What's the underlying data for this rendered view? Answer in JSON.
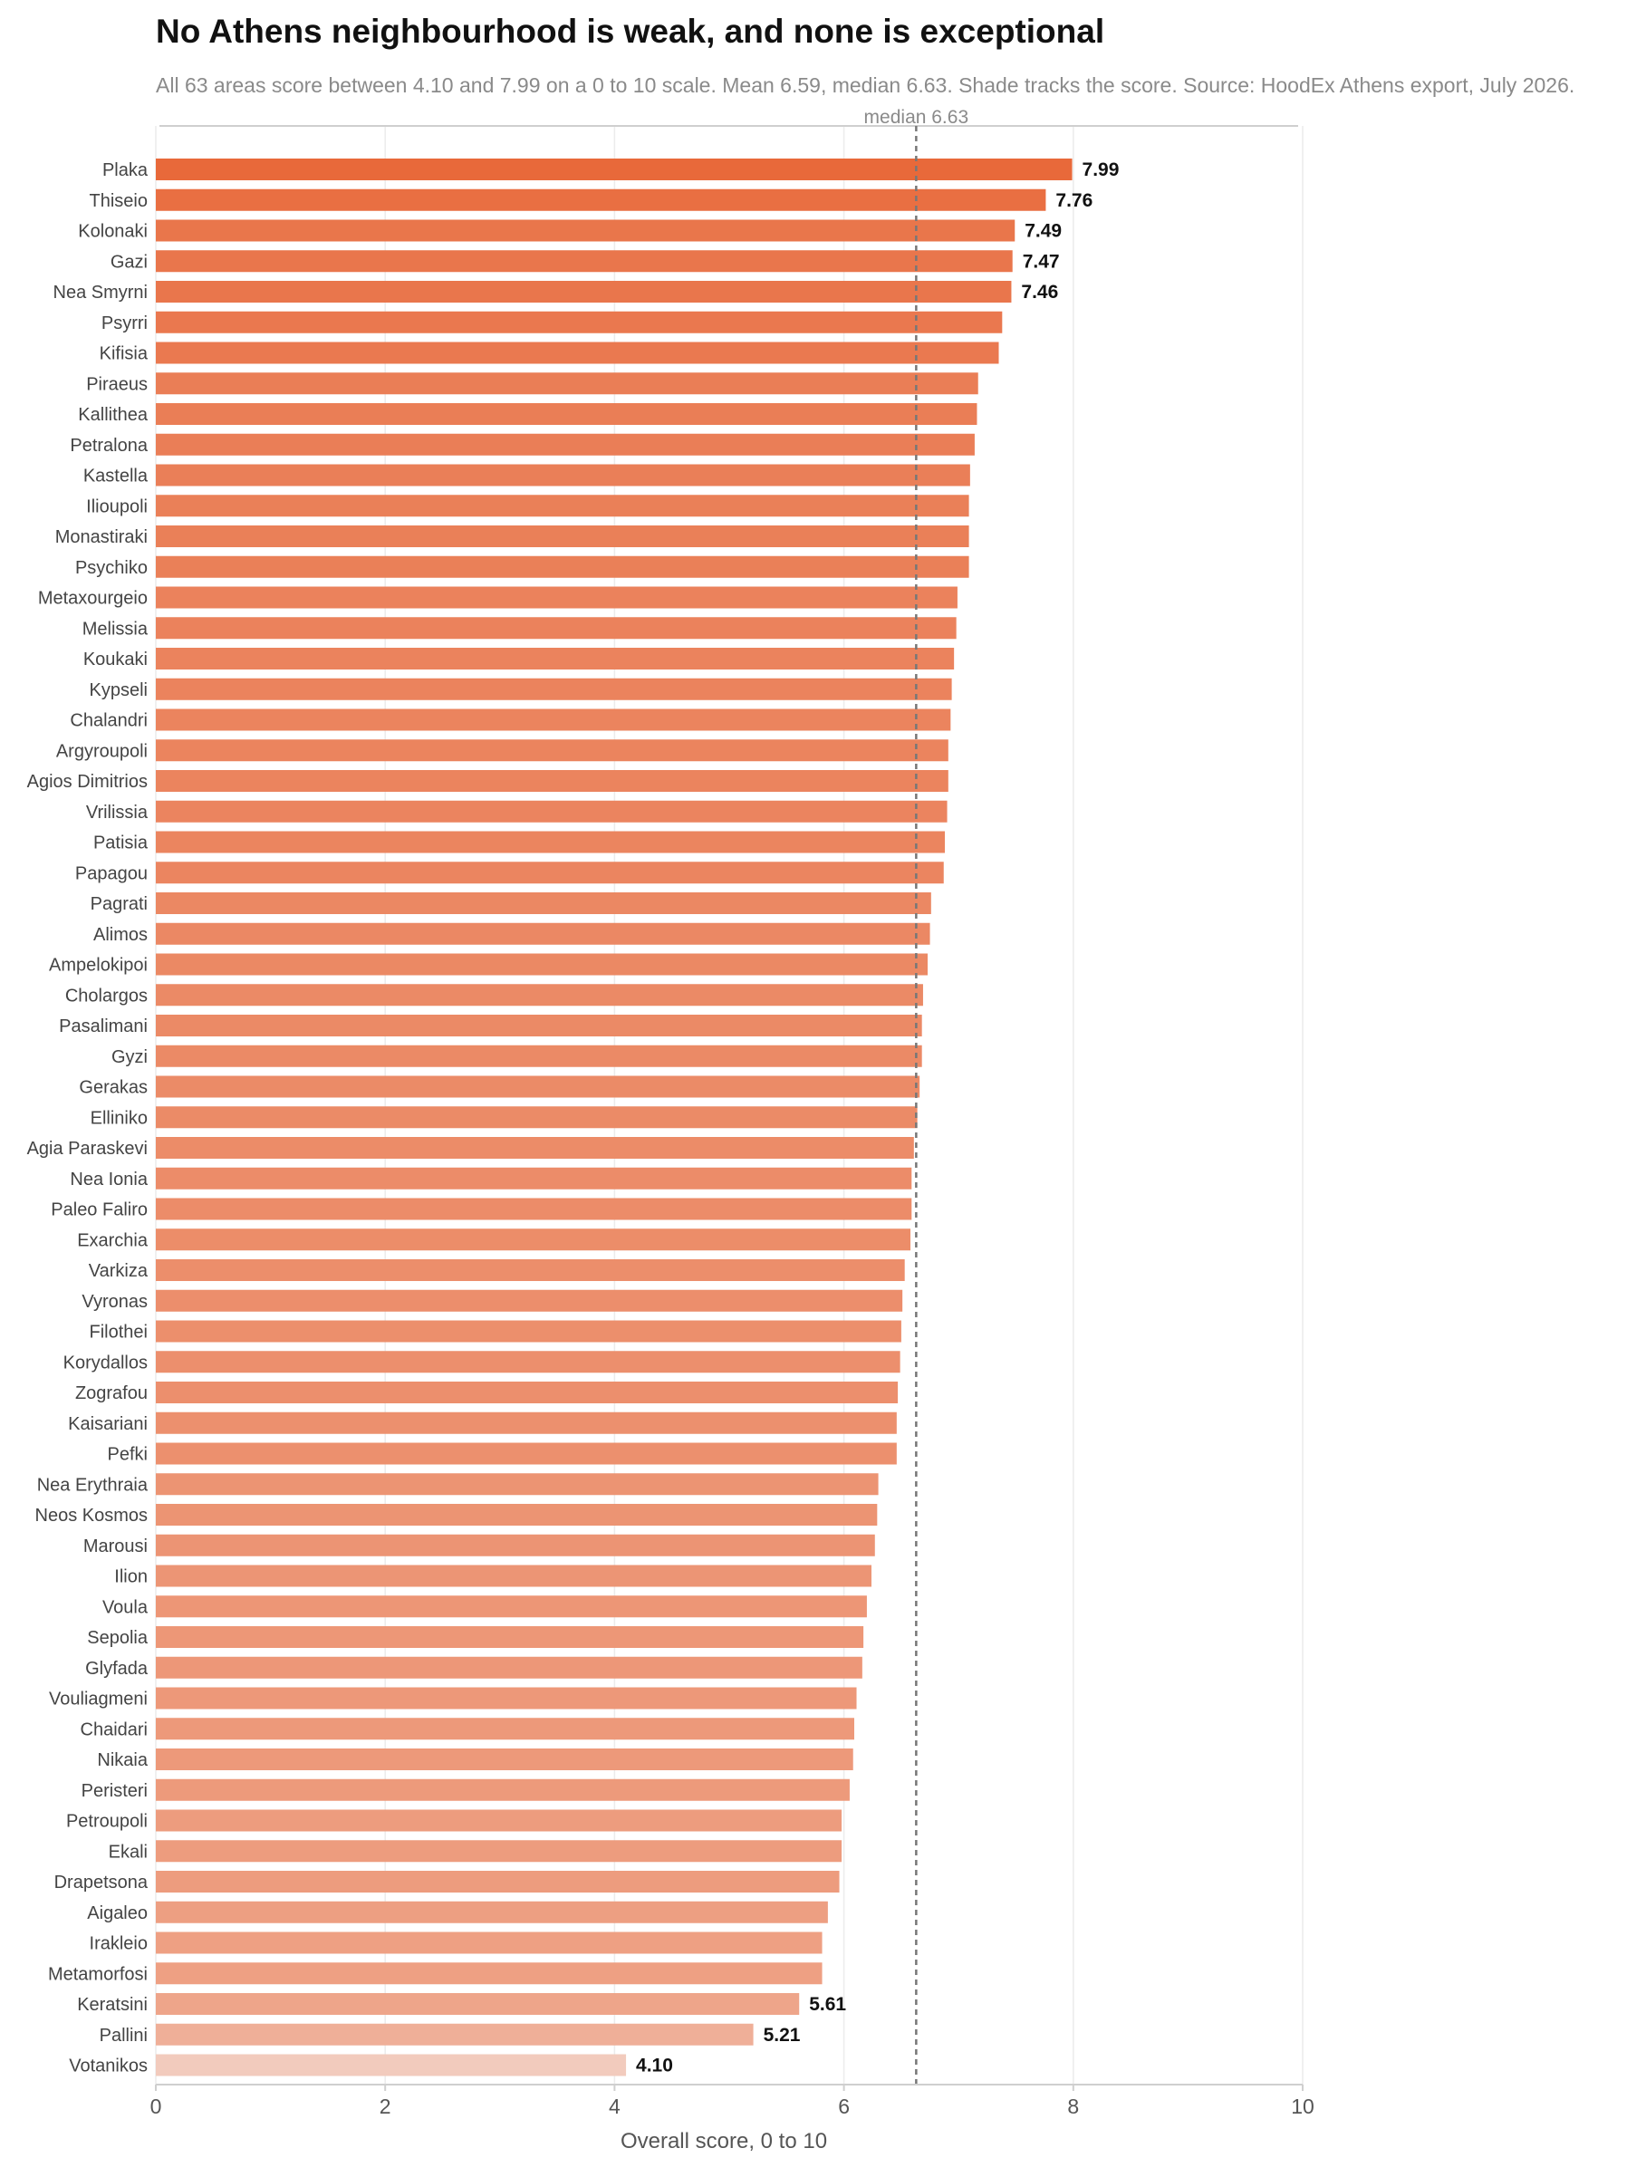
{
  "chart_data": {
    "type": "bar",
    "orientation": "horizontal",
    "title": "No Athens neighbourhood is weak, and none is exceptional",
    "subtitle": "All 63 areas score between 4.10 and 7.99 on a 0 to 10 scale. Mean 6.59, median 6.63. Shade tracks the score. Source: HoodEx Athens export, July 2026.",
    "xlabel": "Overall score, 0 to 10",
    "ylabel": "",
    "xlim": [
      0,
      10
    ],
    "xticks": [
      "0",
      "2",
      "4",
      "6",
      "8",
      "10"
    ],
    "grid": true,
    "median": {
      "value": 6.63,
      "label": "median 6.63"
    },
    "color_low": "#f2cbbd",
    "color_high": "#e8693a",
    "categories": [
      "Plaka",
      "Thiseio",
      "Kolonaki",
      "Gazi",
      "Nea Smyrni",
      "Psyrri",
      "Kifisia",
      "Piraeus",
      "Kallithea",
      "Petralona",
      "Kastella",
      "Ilioupoli",
      "Monastiraki",
      "Psychiko",
      "Metaxourgeio",
      "Melissia",
      "Koukaki",
      "Kypseli",
      "Chalandri",
      "Argyroupoli",
      "Agios Dimitrios",
      "Vrilissia",
      "Patisia",
      "Papagou",
      "Pagrati",
      "Alimos",
      "Ampelokipoi",
      "Cholargos",
      "Pasalimani",
      "Gyzi",
      "Gerakas",
      "Elliniko",
      "Agia Paraskevi",
      "Nea Ionia",
      "Paleo Faliro",
      "Exarchia",
      "Varkiza",
      "Vyronas",
      "Filothei",
      "Korydallos",
      "Zografou",
      "Kaisariani",
      "Pefki",
      "Nea Erythraia",
      "Neos Kosmos",
      "Marousi",
      "Ilion",
      "Voula",
      "Sepolia",
      "Glyfada",
      "Vouliagmeni",
      "Chaidari",
      "Nikaia",
      "Peristeri",
      "Petroupoli",
      "Ekali",
      "Drapetsona",
      "Aigaleo",
      "Irakleio",
      "Metamorfosi",
      "Keratsini",
      "Pallini",
      "Votanikos"
    ],
    "values": [
      7.99,
      7.76,
      7.49,
      7.47,
      7.46,
      7.38,
      7.35,
      7.17,
      7.16,
      7.14,
      7.1,
      7.09,
      7.09,
      7.09,
      6.99,
      6.98,
      6.96,
      6.94,
      6.93,
      6.91,
      6.91,
      6.9,
      6.88,
      6.87,
      6.76,
      6.75,
      6.73,
      6.69,
      6.68,
      6.68,
      6.66,
      6.64,
      6.61,
      6.59,
      6.59,
      6.58,
      6.53,
      6.51,
      6.5,
      6.49,
      6.47,
      6.46,
      6.46,
      6.3,
      6.29,
      6.27,
      6.24,
      6.2,
      6.17,
      6.16,
      6.11,
      6.09,
      6.08,
      6.05,
      5.98,
      5.98,
      5.96,
      5.86,
      5.81,
      5.81,
      5.61,
      5.21,
      4.1
    ],
    "value_labels": [
      {
        "index": 0,
        "text": "7.99"
      },
      {
        "index": 1,
        "text": "7.76"
      },
      {
        "index": 2,
        "text": "7.49"
      },
      {
        "index": 3,
        "text": "7.47"
      },
      {
        "index": 4,
        "text": "7.46"
      },
      {
        "index": 60,
        "text": "5.61"
      },
      {
        "index": 61,
        "text": "5.21"
      },
      {
        "index": 62,
        "text": "4.10"
      }
    ]
  }
}
